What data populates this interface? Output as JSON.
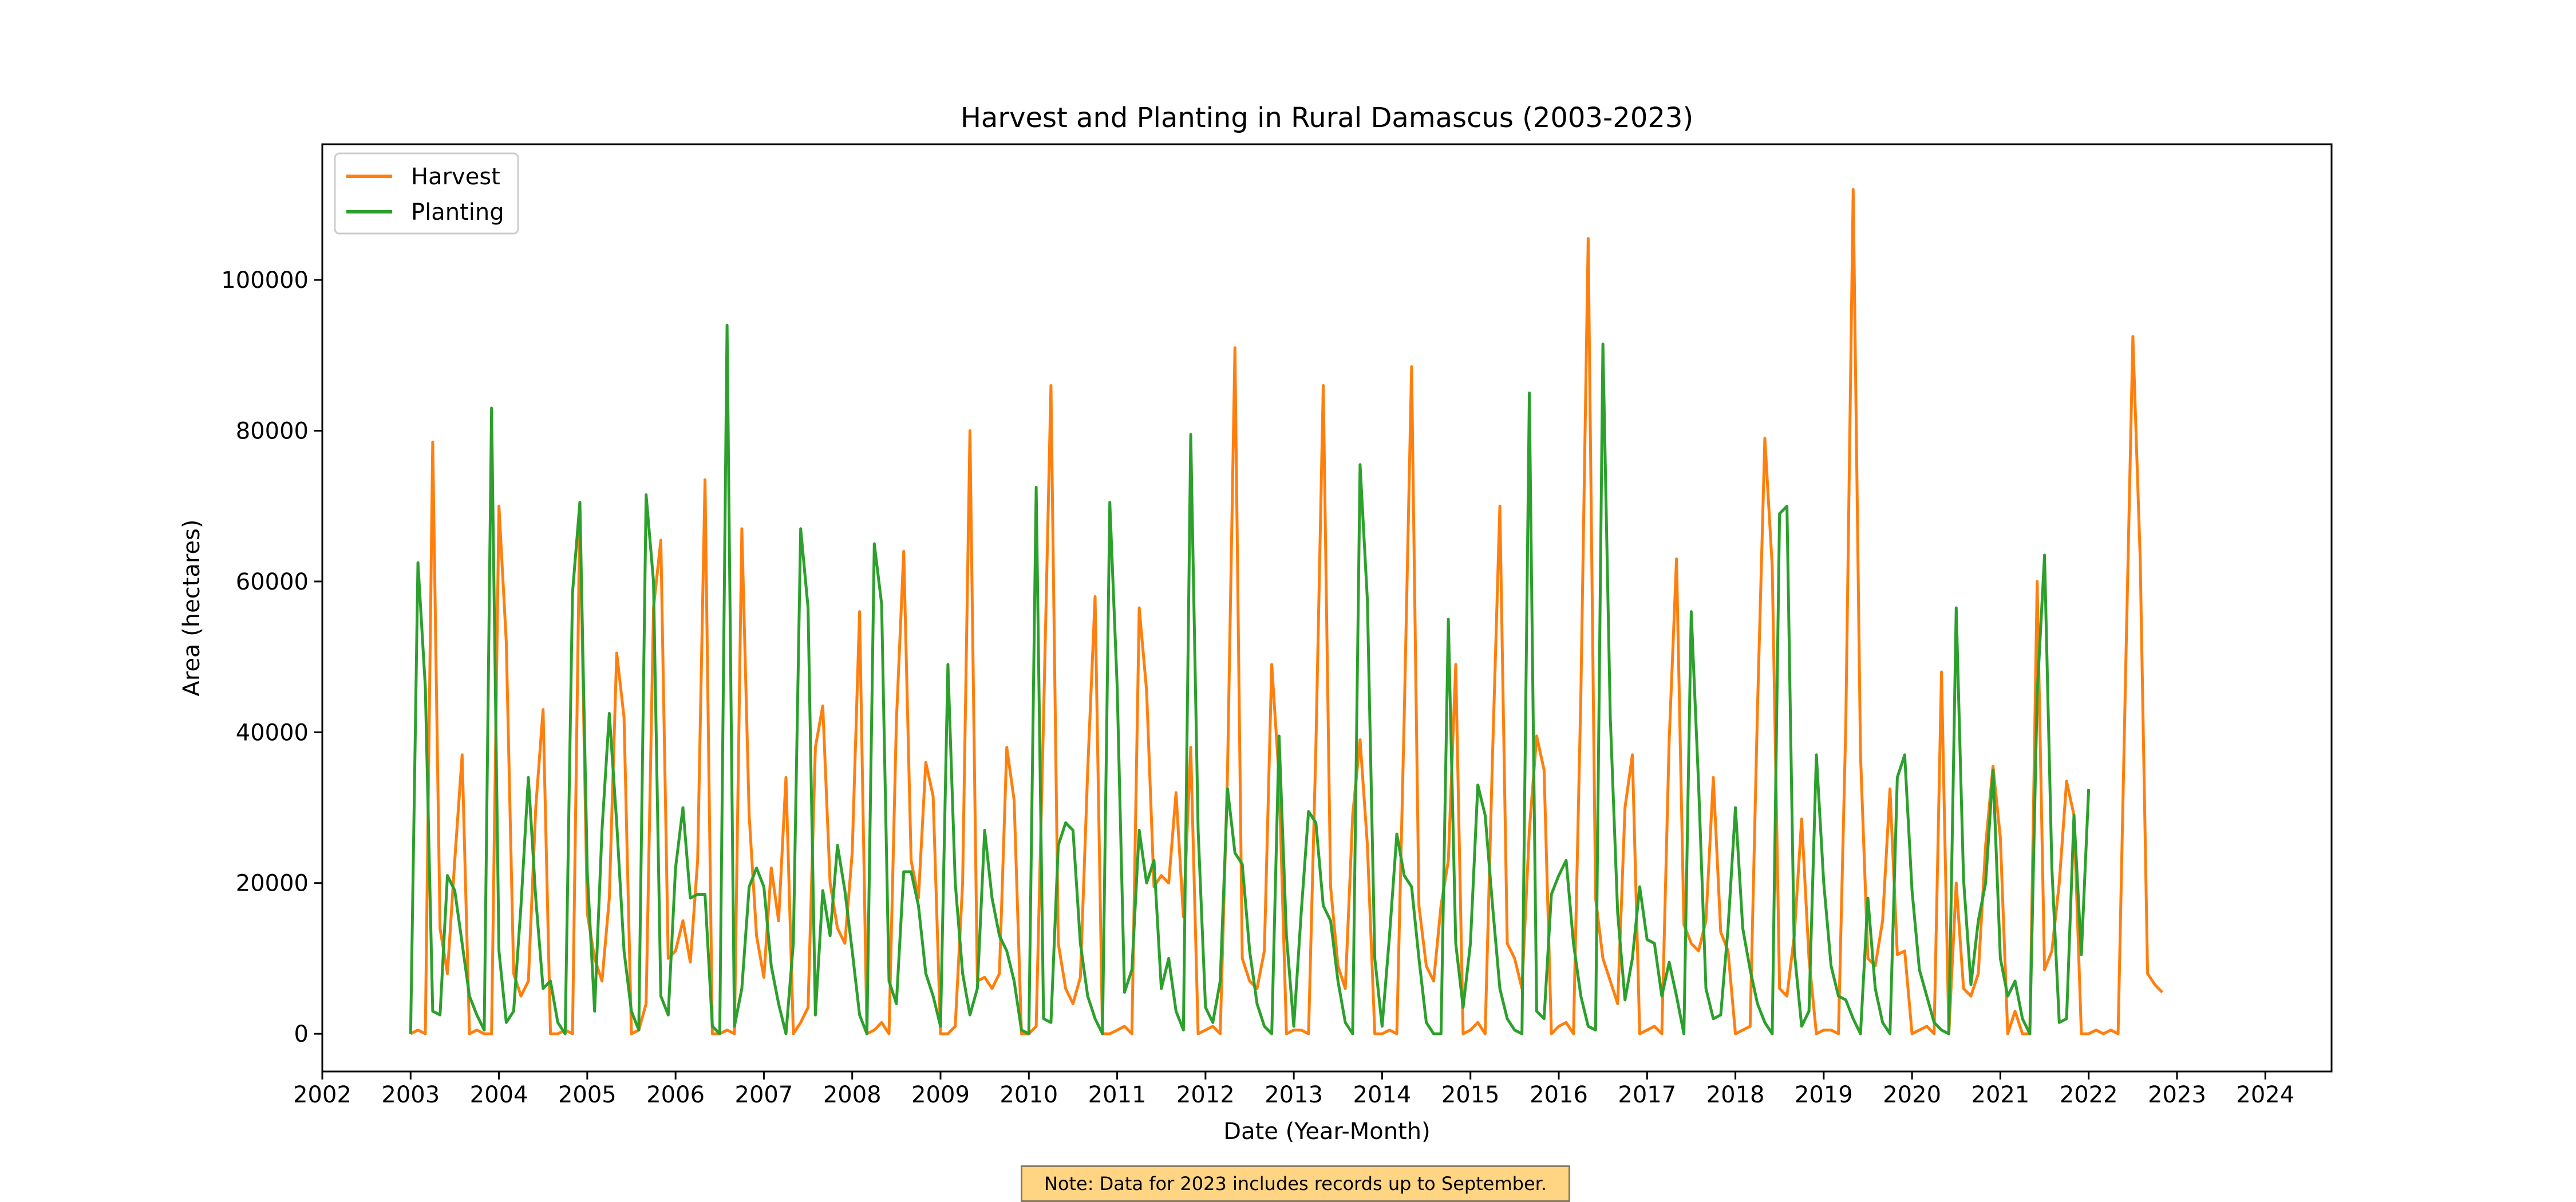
{
  "chart_data": {
    "type": "line",
    "title": "Harvest and Planting in Rural Damascus (2003-2023)",
    "xlabel": "Date (Year-Month)",
    "ylabel": "Area (hectares)",
    "xlim": [
      "2002-01",
      "2024-10"
    ],
    "ylim": [
      -5000,
      118000
    ],
    "x_ticks": [
      "2002",
      "2003",
      "2004",
      "2005",
      "2006",
      "2007",
      "2008",
      "2009",
      "2010",
      "2011",
      "2012",
      "2013",
      "2014",
      "2015",
      "2016",
      "2017",
      "2018",
      "2019",
      "2020",
      "2021",
      "2022",
      "2023",
      "2024"
    ],
    "y_ticks": [
      0,
      20000,
      40000,
      60000,
      80000,
      100000
    ],
    "y_tick_labels": [
      "0",
      "20000",
      "40000",
      "60000",
      "80000",
      "100000"
    ],
    "grid": false,
    "legend_position": "upper-left",
    "x_start": "2003-01",
    "series": [
      {
        "name": "Harvest",
        "color": "#ff7f0e",
        "values": [
          0,
          500,
          0,
          78500,
          14000,
          8000,
          23000,
          37000,
          0,
          500,
          0,
          0,
          70000,
          52000,
          8000,
          5000,
          7000,
          30000,
          43000,
          0,
          0,
          500,
          0,
          69500,
          16000,
          10000,
          7000,
          18000,
          50500,
          42000,
          0,
          500,
          4000,
          56500,
          65500,
          10000,
          11000,
          15000,
          9500,
          23000,
          73500,
          0,
          0,
          500,
          0,
          67000,
          29000,
          13000,
          7500,
          22000,
          15000,
          34000,
          0,
          1500,
          3500,
          38000,
          43500,
          20000,
          14000,
          12000,
          24000,
          56000,
          0,
          500,
          1500,
          0,
          41500,
          64000,
          23000,
          18000,
          36000,
          31500,
          0,
          0,
          1000,
          20000,
          80000,
          7000,
          7500,
          6000,
          8000,
          38000,
          31000,
          0,
          0,
          1000,
          42000,
          86000,
          12000,
          6000,
          4000,
          7500,
          35000,
          58000,
          0,
          0,
          500,
          1000,
          0,
          56500,
          45500,
          19500,
          21000,
          20000,
          32000,
          15500,
          38000,
          0,
          500,
          1000,
          0,
          35000,
          91000,
          10000,
          7000,
          6000,
          11000,
          49000,
          34000,
          0,
          500,
          500,
          0,
          38000,
          86000,
          19500,
          9000,
          6000,
          29000,
          39000,
          25000,
          0,
          0,
          500,
          0,
          42000,
          88500,
          17000,
          9000,
          7000,
          17000,
          23000,
          49000,
          0,
          500,
          1500,
          0,
          37000,
          70000,
          12000,
          10000,
          6000,
          27000,
          39500,
          35000,
          0,
          1000,
          1500,
          0,
          45000,
          105500,
          18000,
          10000,
          7000,
          4000,
          30000,
          37000,
          0,
          500,
          1000,
          0,
          39000,
          63000,
          14500,
          12000,
          11000,
          15000,
          34000,
          13500,
          11000,
          0,
          500,
          1000,
          43000,
          79000,
          62000,
          6000,
          5000,
          13000,
          28500,
          10000,
          0,
          500,
          500,
          0,
          41000,
          112000,
          37000,
          10000,
          9000,
          15000,
          32500,
          10500,
          11000,
          0,
          500,
          1000,
          0,
          48000,
          0,
          20000,
          6000,
          5000,
          8000,
          25000,
          35500,
          26000,
          0,
          3000,
          0,
          0,
          60000,
          8500,
          11000,
          20000,
          33500,
          29000,
          0,
          0,
          500,
          0,
          500,
          0,
          47000,
          92500,
          63000,
          8000,
          6500,
          5500
        ]
      },
      {
        "name": "Planting",
        "color": "#2ca02c",
        "values": [
          0,
          62500,
          46000,
          3000,
          2500,
          21000,
          19000,
          12000,
          5000,
          2500,
          500,
          83000,
          11000,
          1500,
          3000,
          17000,
          34000,
          18000,
          6000,
          7000,
          1500,
          0,
          58500,
          70500,
          21500,
          3000,
          27000,
          42500,
          28000,
          11000,
          3000,
          500,
          71500,
          60000,
          5000,
          2500,
          22000,
          30000,
          18000,
          18500,
          18500,
          1000,
          0,
          94000,
          1000,
          6000,
          19500,
          22000,
          19500,
          9000,
          4000,
          0,
          12000,
          67000,
          56500,
          2500,
          19000,
          13000,
          25000,
          19000,
          11000,
          2500,
          0,
          65000,
          57000,
          7000,
          4000,
          21500,
          21500,
          17000,
          8000,
          5000,
          1000,
          49000,
          20000,
          8000,
          2500,
          6000,
          27000,
          18000,
          13000,
          11000,
          7000,
          500,
          0,
          72500,
          2000,
          1500,
          25000,
          28000,
          27000,
          12000,
          5000,
          2000,
          0,
          70500,
          46000,
          5500,
          8500,
          27000,
          20000,
          23000,
          6000,
          10000,
          3000,
          500,
          79500,
          27000,
          3500,
          1500,
          7000,
          32500,
          24000,
          22500,
          11000,
          4000,
          1000,
          0,
          39500,
          13000,
          1000,
          16000,
          29500,
          28000,
          17000,
          15000,
          7000,
          1500,
          0,
          75500,
          57500,
          10000,
          1000,
          13000,
          26500,
          21000,
          19500,
          10000,
          1500,
          0,
          0,
          55000,
          12000,
          3500,
          12000,
          33000,
          29000,
          17000,
          6000,
          2000,
          500,
          0,
          85000,
          3000,
          2000,
          18500,
          21000,
          23000,
          12000,
          5000,
          1000,
          500,
          91500,
          42000,
          16000,
          4500,
          10000,
          19500,
          12500,
          12000,
          5000,
          9500,
          5000,
          0,
          56000,
          33000,
          6000,
          2000,
          2500,
          14000,
          30000,
          14000,
          8500,
          4000,
          1500,
          0,
          69000,
          70000,
          11000,
          1000,
          3000,
          37000,
          20000,
          9000,
          5000,
          4500,
          2000,
          0,
          18000,
          6000,
          1500,
          0,
          34000,
          37000,
          19000,
          8500,
          5000,
          1500,
          500,
          0,
          56500,
          20500,
          6500,
          15000,
          20000,
          35000,
          10000,
          5000,
          7000,
          2000,
          0,
          45000,
          63500,
          22000,
          1500,
          2000,
          29000,
          10500,
          32500
        ]
      }
    ],
    "note": "Note: Data for 2023 includes records up to September."
  }
}
